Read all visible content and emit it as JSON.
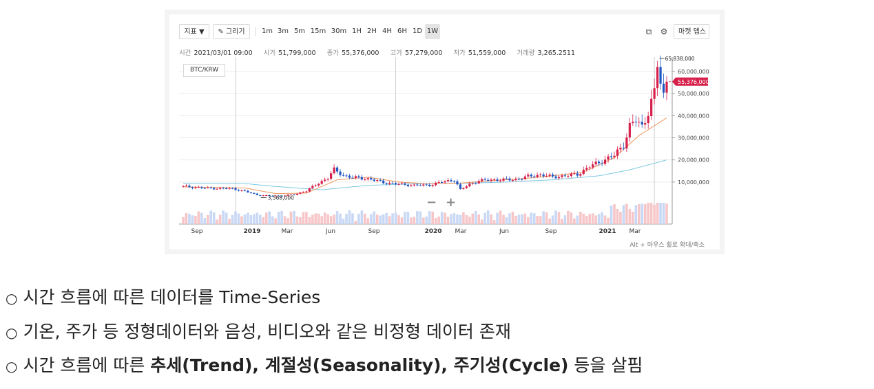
{
  "toolbar": {
    "indicator_label": "지표 ▼",
    "draw_label": "✎ 그리기",
    "timeframes": [
      "1m",
      "3m",
      "5m",
      "15m",
      "30m",
      "1H",
      "2H",
      "4H",
      "6H",
      "1D",
      "1W"
    ],
    "active_timeframe": "1W",
    "market_depth_label": "마켓 뎁스"
  },
  "ohlc": {
    "time_label": "시간",
    "time_value": "2021/03/01 09:00",
    "open_label": "시가",
    "open_value": "51,799,000",
    "close_label": "종가",
    "close_value": "55,376,000",
    "high_label": "고가",
    "high_value": "57,279,000",
    "low_label": "저가",
    "low_value": "51,559,000",
    "volume_label": "거래량",
    "volume_value": "3,265.2511"
  },
  "pair": "BTC/KRW",
  "hint": "Alt + 마우스 휠로 확대/축소",
  "colors": {
    "up": "#d6204a",
    "down": "#1f57c4",
    "ma_short": "#f0955a",
    "ma_long": "#7dc8e0",
    "up_volume": "#f6c6c8",
    "down_volume": "#c9d8f4",
    "price_tag": "#d6204a"
  },
  "chart_data": {
    "type": "candlestick",
    "pair": "BTC/KRW",
    "x_tick_labels": [
      "Sep",
      "2019",
      "Mar",
      "Jun",
      "Sep",
      "2020",
      "Mar",
      "Jun",
      "Sep",
      "2021",
      "Mar"
    ],
    "y_tick_labels": [
      "10,000,000",
      "20,000,000",
      "30,000,000",
      "40,000,000",
      "50,000,000",
      "60,000,000"
    ],
    "ylim": [
      -9000000,
      66500000
    ],
    "max_label": "65,838,000",
    "min_label": "3,568,000",
    "current_price_label": "55,376,000",
    "current_price": 55376000,
    "close_series_keypoints": [
      [
        0,
        8000000
      ],
      [
        8,
        7200000
      ],
      [
        16,
        7000000
      ],
      [
        20,
        5800000
      ],
      [
        24,
        4200000
      ],
      [
        28,
        3700000
      ],
      [
        32,
        3800000
      ],
      [
        36,
        4300000
      ],
      [
        40,
        6000000
      ],
      [
        44,
        9500000
      ],
      [
        47,
        12000000
      ],
      [
        49,
        15500000
      ],
      [
        52,
        13000000
      ],
      [
        55,
        12000000
      ],
      [
        60,
        11500000
      ],
      [
        65,
        9800000
      ],
      [
        70,
        9000000
      ],
      [
        75,
        8500000
      ],
      [
        80,
        8600000
      ],
      [
        84,
        10000000
      ],
      [
        88,
        11000000
      ],
      [
        90,
        6500000
      ],
      [
        93,
        9000000
      ],
      [
        96,
        10500000
      ],
      [
        100,
        11000000
      ],
      [
        104,
        11000000
      ],
      [
        108,
        11200000
      ],
      [
        112,
        12500000
      ],
      [
        116,
        13300000
      ],
      [
        120,
        12300000
      ],
      [
        124,
        12800000
      ],
      [
        128,
        13500000
      ],
      [
        132,
        17000000
      ],
      [
        136,
        19500000
      ],
      [
        140,
        22000000
      ],
      [
        143,
        27000000
      ],
      [
        145,
        35000000
      ],
      [
        147,
        38000000
      ],
      [
        149,
        35000000
      ],
      [
        151,
        42000000
      ],
      [
        153,
        50000000
      ],
      [
        154,
        63000000
      ],
      [
        155,
        55000000
      ],
      [
        156,
        49000000
      ],
      [
        157,
        55376000
      ]
    ],
    "ma_short_keypoints": [
      [
        0,
        7800000
      ],
      [
        20,
        7300000
      ],
      [
        30,
        4800000
      ],
      [
        40,
        5000000
      ],
      [
        50,
        11000000
      ],
      [
        60,
        12200000
      ],
      [
        70,
        10000000
      ],
      [
        80,
        9200000
      ],
      [
        90,
        9500000
      ],
      [
        100,
        10600000
      ],
      [
        110,
        11500000
      ],
      [
        120,
        12800000
      ],
      [
        130,
        14500000
      ],
      [
        140,
        21000000
      ],
      [
        148,
        31000000
      ],
      [
        157,
        39000000
      ]
    ],
    "ma_long_keypoints": [
      [
        0,
        9500000
      ],
      [
        20,
        9300000
      ],
      [
        30,
        8000000
      ],
      [
        45,
        6500000
      ],
      [
        60,
        8500000
      ],
      [
        75,
        9200000
      ],
      [
        90,
        9400000
      ],
      [
        105,
        10000000
      ],
      [
        120,
        11000000
      ],
      [
        135,
        12800000
      ],
      [
        145,
        15500000
      ],
      [
        157,
        20000000
      ]
    ]
  },
  "bullets": [
    {
      "parts": [
        {
          "text": "시간 흐름에 따른 데이터를 Time-Series",
          "bold": false
        }
      ]
    },
    {
      "parts": [
        {
          "text": "기온, 주가 등 정형데이터와 음성, 비디오와 같은 비정형 데이터 존재",
          "bold": false
        }
      ]
    },
    {
      "parts": [
        {
          "text": "시간 흐름에 따른 ",
          "bold": false
        },
        {
          "text": "추세(Trend), 계절성(Seasonality), 주기성(Cycle)",
          "bold": true
        },
        {
          "text": " 등을 살핌",
          "bold": false
        }
      ]
    }
  ],
  "bullet_mark": "○"
}
